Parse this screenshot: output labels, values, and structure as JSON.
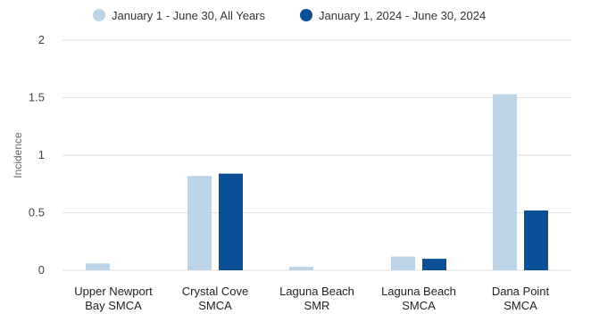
{
  "chart_data": {
    "type": "bar",
    "categories": [
      [
        "Upper Newport",
        "Bay SMCA"
      ],
      [
        "Crystal Cove",
        "SMCA"
      ],
      [
        "Laguna Beach",
        "SMR"
      ],
      [
        "Laguna Beach",
        "SMCA"
      ],
      [
        "Dana Point",
        "SMCA"
      ]
    ],
    "series": [
      {
        "name": "January 1 - June 30, All Years",
        "color": "#bcd4e6",
        "values": [
          0.06,
          0.82,
          0.03,
          0.12,
          1.53
        ]
      },
      {
        "name": "January 1, 2024 - June 30, 2024",
        "color": "#0b4f96",
        "values": [
          0,
          0.84,
          0,
          0.1,
          0.52
        ]
      }
    ],
    "ylabel": "Incidence",
    "ylim": [
      0,
      2
    ],
    "yticks": [
      "0",
      "0.5",
      "1",
      "1.5",
      "2"
    ],
    "ytick_values": [
      0,
      0.5,
      1,
      1.5,
      2
    ],
    "grid": true,
    "legend_position": "top"
  }
}
